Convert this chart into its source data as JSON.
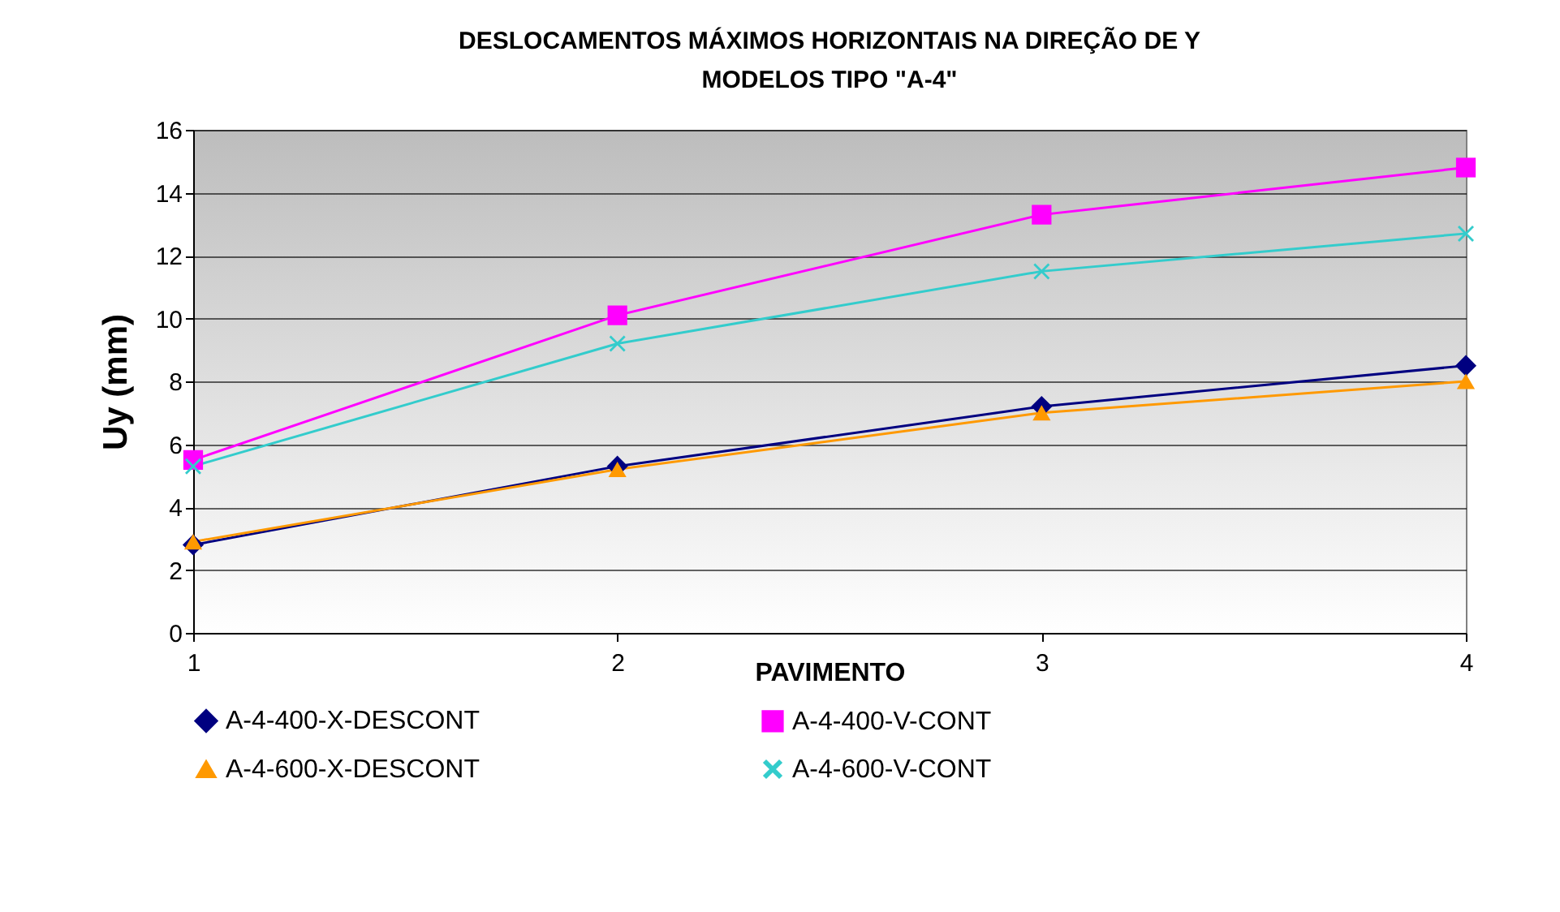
{
  "chart_data": {
    "type": "line",
    "title": [
      "DESLOCAMENTOS MÁXIMOS HORIZONTAIS NA DIREÇÃO DE Y",
      "MODELOS  TIPO \"A-4\""
    ],
    "xlabel": "PAVIMENTO",
    "ylabel": "Uy (mm)",
    "x": [
      1,
      2,
      3,
      4
    ],
    "xlim": [
      1,
      4
    ],
    "xticks": [
      1,
      2,
      3,
      4
    ],
    "ylim": [
      0,
      16
    ],
    "yticks": [
      0,
      2,
      4,
      6,
      8,
      10,
      12,
      14,
      16
    ],
    "grid": "y",
    "legend": "bottom",
    "series": [
      {
        "name": "A-4-400-X-DESCONT",
        "color": "#000080",
        "marker": "diamond",
        "values": [
          2.8,
          5.3,
          7.2,
          8.5
        ]
      },
      {
        "name": "A-4-400-V-CONT",
        "color": "#ff00ff",
        "marker": "square",
        "values": [
          5.5,
          10.1,
          13.3,
          14.8
        ]
      },
      {
        "name": "A-4-600-X-DESCONT",
        "color": "#ff9900",
        "marker": "triangle",
        "values": [
          2.9,
          5.2,
          7.0,
          8.0
        ]
      },
      {
        "name": "A-4-600-V-CONT",
        "color": "#33cccc",
        "marker": "cross",
        "values": [
          5.3,
          9.2,
          11.5,
          12.7
        ]
      }
    ]
  }
}
